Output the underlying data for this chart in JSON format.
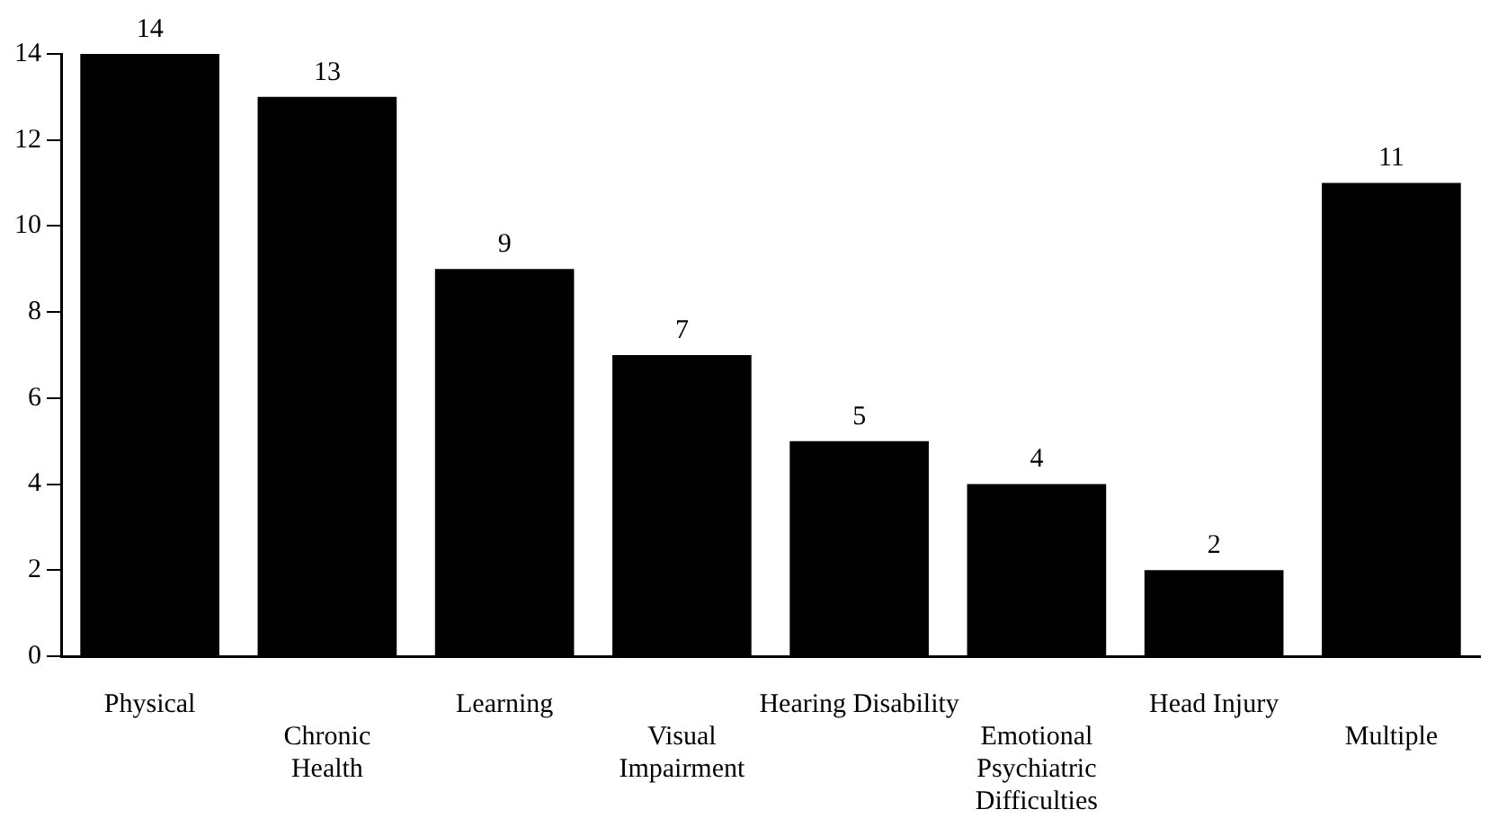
{
  "chart_data": {
    "type": "bar",
    "categories": [
      "Physical",
      "Chronic Health",
      "Learning",
      "Visual Impairment",
      "Hearing Disability",
      "Emotional Psychiatric Difficulties",
      "Head Injury",
      "Multiple"
    ],
    "values": [
      14,
      13,
      9,
      7,
      5,
      4,
      2,
      11
    ],
    "color": "#000000",
    "ylim": [
      0,
      14
    ],
    "yticks": [
      0,
      2,
      4,
      6,
      8,
      10,
      12,
      14
    ],
    "grid": false,
    "legend": false,
    "data_labels": true
  }
}
